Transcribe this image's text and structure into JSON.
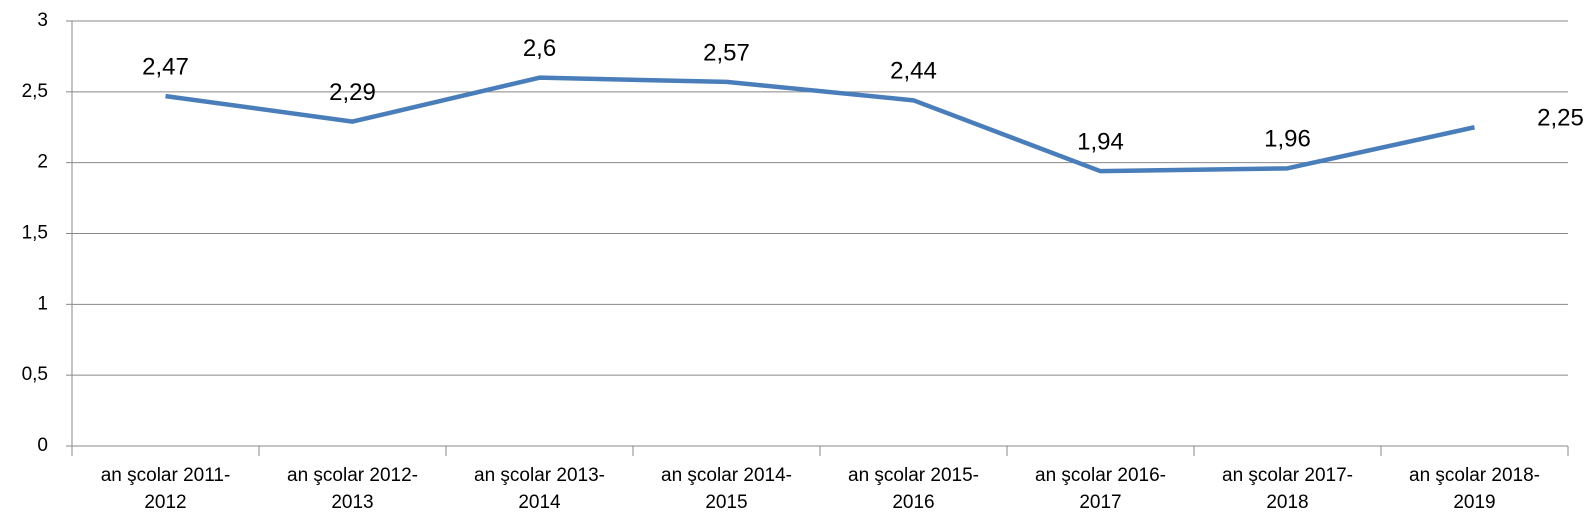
{
  "chart_data": {
    "type": "line",
    "categories": [
      "an şcolar 2011-2012",
      "an şcolar 2012-2013",
      "an şcolar 2013-2014",
      "an şcolar 2014-2015",
      "an şcolar 2015-2016",
      "an şcolar 2016-2017",
      "an şcolar 2017-2018",
      "an şcolar 2018-2019"
    ],
    "values": [
      2.47,
      2.29,
      2.6,
      2.57,
      2.44,
      1.94,
      1.96,
      2.25
    ],
    "value_labels": [
      "2,47",
      "2,29",
      "2,6",
      "2,57",
      "2,44",
      "1,94",
      "1,96",
      "2,25"
    ],
    "color": "#4a7ebb",
    "ylim": [
      0,
      3
    ],
    "yticks": [
      0,
      {
        "value": 0.5,
        "label": "0,5"
      },
      1,
      {
        "value": 1.5,
        "label": "1,5"
      },
      2,
      {
        "value": 2.5,
        "label": "2,5"
      },
      3
    ],
    "grid": true
  }
}
